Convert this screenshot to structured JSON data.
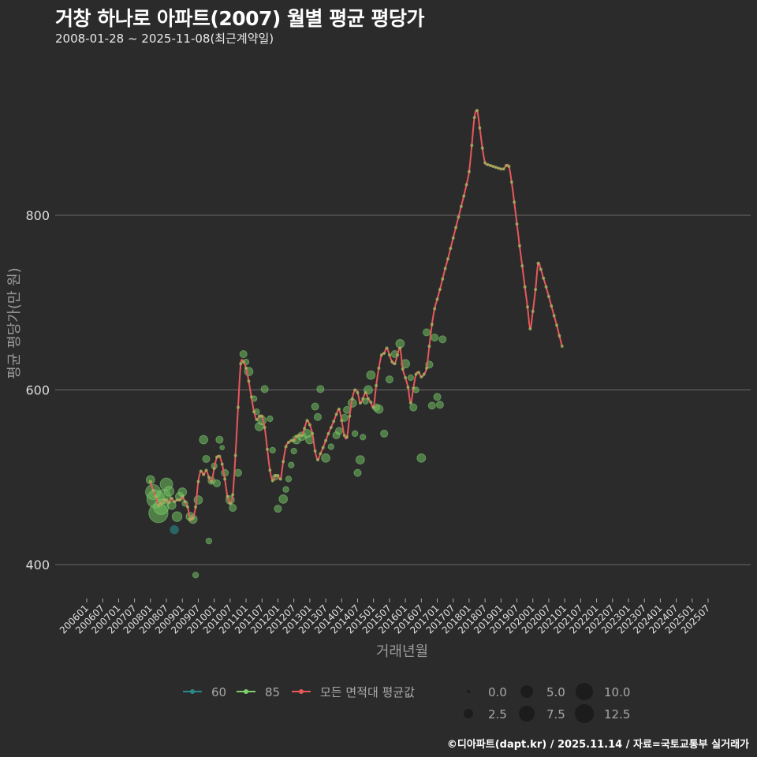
{
  "header": {
    "title": "거창 하나로 아파트(2007) 월별 평균 평당가",
    "subtitle": "2008-01-28 ~ 2025-11-08(최근계약일)"
  },
  "footer": {
    "credit": "©디아파트(dapt.kr) / 2025.11.14 / 자료=국토교통부 실거래가"
  },
  "colors": {
    "background": "#2b2b2c",
    "grid": "#6a6a6a",
    "s60": "#2a8a8a",
    "s85": "#7fd06a",
    "avg": "#e8585a",
    "point_fill": "#6fbf5e"
  },
  "chart_data": {
    "type": "scatter+line",
    "title": "거창 하나로 아파트(2007) 월별 평균 평당가",
    "subtitle": "2008-01-28 ~ 2025-11-08(최근계약일)",
    "xlabel": "거래년월",
    "ylabel": "평균 평당가(만 원)",
    "yticks": [
      400,
      600,
      800
    ],
    "ylim": [
      355,
      965
    ],
    "grid": true,
    "xticks": [
      "200601",
      "200607",
      "200701",
      "200707",
      "200801",
      "200807",
      "200901",
      "200907",
      "201001",
      "201007",
      "201101",
      "201107",
      "201201",
      "201207",
      "201301",
      "201307",
      "201401",
      "201407",
      "201501",
      "201507",
      "201601",
      "201607",
      "201701",
      "201707",
      "201801",
      "201807",
      "201901",
      "201907",
      "202001",
      "202007",
      "202101",
      "202107",
      "202201",
      "202207",
      "202301",
      "202307",
      "202401",
      "202407",
      "202501",
      "202507"
    ],
    "legend": {
      "series": [
        {
          "name": "60",
          "color": "#2a8a8a"
        },
        {
          "name": "85",
          "color": "#7fd06a"
        },
        {
          "name": "모든 면적대 평균값",
          "color": "#e8585a"
        }
      ],
      "size": [
        "0.0",
        "2.5",
        "5.0",
        "7.5",
        "10.0",
        "12.5"
      ]
    },
    "series_60_points": [
      [
        "200810",
        440,
        2
      ]
    ],
    "series_85_points": [
      [
        "200801",
        497,
        4
      ],
      [
        "200802",
        483,
        9
      ],
      [
        "200803",
        475,
        11
      ],
      [
        "200804",
        459,
        12
      ],
      [
        "200805",
        466,
        9
      ],
      [
        "200806",
        478,
        8
      ],
      [
        "200807",
        492,
        7
      ],
      [
        "200808",
        484,
        5
      ],
      [
        "200809",
        468,
        4
      ],
      [
        "200811",
        455,
        5
      ],
      [
        "200812",
        478,
        4
      ],
      [
        "200901",
        483,
        4
      ],
      [
        "200902",
        470,
        2
      ],
      [
        "200904",
        455,
        4
      ],
      [
        "200905",
        452,
        4
      ],
      [
        "200906",
        388,
        2
      ],
      [
        "200907",
        474,
        4
      ],
      [
        "200909",
        543,
        4
      ],
      [
        "200910",
        521,
        3
      ],
      [
        "200911",
        427,
        2
      ],
      [
        "200912",
        496,
        3
      ],
      [
        "201001",
        513,
        2
      ],
      [
        "201002",
        493,
        3
      ],
      [
        "201003",
        543,
        3
      ],
      [
        "201004",
        534,
        1
      ],
      [
        "201005",
        505,
        3
      ],
      [
        "201007",
        474,
        4
      ],
      [
        "201008",
        465,
        3
      ],
      [
        "201010",
        505,
        3
      ],
      [
        "201012",
        641,
        3
      ],
      [
        "201101",
        632,
        2
      ],
      [
        "201102",
        621,
        4
      ],
      [
        "201104",
        590,
        2
      ],
      [
        "201105",
        575,
        2
      ],
      [
        "201106",
        558,
        4
      ],
      [
        "201107",
        565,
        4
      ],
      [
        "201108",
        601,
        3
      ],
      [
        "201110",
        567,
        2
      ],
      [
        "201111",
        531,
        2
      ],
      [
        "201112",
        500,
        2
      ],
      [
        "201201",
        464,
        3
      ],
      [
        "201203",
        475,
        4
      ],
      [
        "201204",
        486,
        2
      ],
      [
        "201205",
        498,
        2
      ],
      [
        "201206",
        514,
        2
      ],
      [
        "201207",
        530,
        2
      ],
      [
        "201208",
        543,
        4
      ],
      [
        "201210",
        547,
        4
      ],
      [
        "201212",
        550,
        4
      ],
      [
        "201301",
        543,
        4
      ],
      [
        "201303",
        581,
        3
      ],
      [
        "201304",
        569,
        3
      ],
      [
        "201305",
        601,
        3
      ],
      [
        "201307",
        522,
        4
      ],
      [
        "201309",
        535,
        2
      ],
      [
        "201311",
        548,
        3
      ],
      [
        "201312",
        553,
        3
      ],
      [
        "201402",
        568,
        3
      ],
      [
        "201403",
        577,
        3
      ],
      [
        "201405",
        585,
        4
      ],
      [
        "201406",
        550,
        2
      ],
      [
        "201407",
        505,
        3
      ],
      [
        "201408",
        520,
        4
      ],
      [
        "201409",
        546,
        2
      ],
      [
        "201410",
        587,
        2
      ],
      [
        "201411",
        600,
        4
      ],
      [
        "201412",
        617,
        4
      ],
      [
        "201502",
        580,
        3
      ],
      [
        "201503",
        578,
        4
      ],
      [
        "201505",
        550,
        3
      ],
      [
        "201507",
        612,
        3
      ],
      [
        "201509",
        641,
        3
      ],
      [
        "201511",
        653,
        4
      ],
      [
        "201601",
        630,
        4
      ],
      [
        "201603",
        614,
        2
      ],
      [
        "201604",
        580,
        3
      ],
      [
        "201605",
        600,
        2
      ],
      [
        "201607",
        522,
        4
      ],
      [
        "201609",
        666,
        3
      ],
      [
        "201610",
        629,
        3
      ],
      [
        "201611",
        582,
        3
      ],
      [
        "201612",
        660,
        3
      ],
      [
        "201701",
        592,
        3
      ],
      [
        "201702",
        583,
        3
      ],
      [
        "201703",
        658,
        3
      ]
    ],
    "avg_line": [
      [
        "200801",
        495
      ],
      [
        "200802",
        485
      ],
      [
        "200803",
        478
      ],
      [
        "200804",
        468
      ],
      [
        "200805",
        470
      ],
      [
        "200806",
        474
      ],
      [
        "200807",
        474
      ],
      [
        "200808",
        471
      ],
      [
        "200809",
        476
      ],
      [
        "200810",
        472
      ],
      [
        "200811",
        474
      ],
      [
        "200812",
        474
      ],
      [
        "200901",
        478
      ],
      [
        "200902",
        472
      ],
      [
        "200903",
        466
      ],
      [
        "200904",
        452
      ],
      [
        "200905",
        453
      ],
      [
        "200906",
        466
      ],
      [
        "200907",
        495
      ],
      [
        "200908",
        507
      ],
      [
        "200909",
        503
      ],
      [
        "200910",
        508
      ],
      [
        "200911",
        500
      ],
      [
        "200912",
        495
      ],
      [
        "201001",
        510
      ],
      [
        "201002",
        523
      ],
      [
        "201003",
        524
      ],
      [
        "201004",
        515
      ],
      [
        "201005",
        498
      ],
      [
        "201006",
        478
      ],
      [
        "201007",
        470
      ],
      [
        "201008",
        480
      ],
      [
        "201009",
        525
      ],
      [
        "201010",
        580
      ],
      [
        "201011",
        630
      ],
      [
        "201012",
        632
      ],
      [
        "201101",
        625
      ],
      [
        "201102",
        610
      ],
      [
        "201103",
        592
      ],
      [
        "201104",
        575
      ],
      [
        "201105",
        566
      ],
      [
        "201106",
        570
      ],
      [
        "201107",
        570
      ],
      [
        "201108",
        557
      ],
      [
        "201109",
        532
      ],
      [
        "201110",
        508
      ],
      [
        "201111",
        496
      ],
      [
        "201112",
        502
      ],
      [
        "201201",
        502
      ],
      [
        "201202",
        498
      ],
      [
        "201203",
        518
      ],
      [
        "201204",
        535
      ],
      [
        "201205",
        540
      ],
      [
        "201206",
        542
      ],
      [
        "201207",
        542
      ],
      [
        "201208",
        547
      ],
      [
        "201209",
        548
      ],
      [
        "201210",
        548
      ],
      [
        "201211",
        556
      ],
      [
        "201212",
        565
      ],
      [
        "201301",
        560
      ],
      [
        "201302",
        550
      ],
      [
        "201303",
        530
      ],
      [
        "201304",
        520
      ],
      [
        "201305",
        527
      ],
      [
        "201306",
        534
      ],
      [
        "201307",
        542
      ],
      [
        "201308",
        550
      ],
      [
        "201309",
        557
      ],
      [
        "201310",
        564
      ],
      [
        "201311",
        572
      ],
      [
        "201312",
        578
      ],
      [
        "201401",
        565
      ],
      [
        "201402",
        548
      ],
      [
        "201403",
        546
      ],
      [
        "201404",
        570
      ],
      [
        "201405",
        590
      ],
      [
        "201406",
        600
      ],
      [
        "201407",
        597
      ],
      [
        "201408",
        585
      ],
      [
        "201409",
        590
      ],
      [
        "201410",
        597
      ],
      [
        "201411",
        590
      ],
      [
        "201412",
        586
      ],
      [
        "201501",
        580
      ],
      [
        "201502",
        605
      ],
      [
        "201503",
        625
      ],
      [
        "201504",
        640
      ],
      [
        "201505",
        642
      ],
      [
        "201506",
        648
      ],
      [
        "201507",
        640
      ],
      [
        "201508",
        632
      ],
      [
        "201509",
        630
      ],
      [
        "201510",
        640
      ],
      [
        "201511",
        648
      ],
      [
        "201512",
        624
      ],
      [
        "201601",
        614
      ],
      [
        "201602",
        603
      ],
      [
        "201603",
        585
      ],
      [
        "201604",
        602
      ],
      [
        "201605",
        618
      ],
      [
        "201606",
        620
      ],
      [
        "201607",
        615
      ],
      [
        "201608",
        618
      ],
      [
        "201609",
        625
      ],
      [
        "201610",
        650
      ],
      [
        "201611",
        675
      ],
      [
        "201612",
        693
      ],
      [
        "201701",
        704
      ],
      [
        "201702",
        715
      ],
      [
        "201703",
        727
      ],
      [
        "201704",
        739
      ],
      [
        "201705",
        750
      ],
      [
        "201706",
        762
      ],
      [
        "201707",
        774
      ],
      [
        "201708",
        786
      ],
      [
        "201709",
        798
      ],
      [
        "201710",
        810
      ],
      [
        "201711",
        822
      ],
      [
        "201712",
        835
      ],
      [
        "201801",
        850
      ],
      [
        "201802",
        880
      ],
      [
        "201803",
        912
      ],
      [
        "201804",
        920
      ],
      [
        "201805",
        900
      ],
      [
        "201806",
        877
      ],
      [
        "201807",
        860
      ],
      [
        "201808",
        858
      ],
      [
        "201809",
        857
      ],
      [
        "201810",
        856
      ],
      [
        "201811",
        855
      ],
      [
        "201812",
        854
      ],
      [
        "201901",
        853
      ],
      [
        "201902",
        853
      ],
      [
        "201903",
        857
      ],
      [
        "201904",
        856
      ],
      [
        "201905",
        838
      ],
      [
        "201906",
        815
      ],
      [
        "201907",
        790
      ],
      [
        "201908",
        765
      ],
      [
        "201909",
        742
      ],
      [
        "201910",
        718
      ],
      [
        "201911",
        695
      ],
      [
        "201912",
        670
      ],
      [
        "202001",
        690
      ],
      [
        "202002",
        715
      ],
      [
        "202003",
        745
      ],
      [
        "202004",
        738
      ],
      [
        "202005",
        728
      ],
      [
        "202006",
        718
      ],
      [
        "202007",
        707
      ],
      [
        "202008",
        696
      ],
      [
        "202009",
        685
      ],
      [
        "202010",
        674
      ],
      [
        "202011",
        662
      ],
      [
        "202012",
        650
      ]
    ]
  },
  "axes": {
    "x_title": "거래년월",
    "y_title": "평균 평당가(만 원)",
    "yticks": [
      "400",
      "600",
      "800"
    ]
  },
  "legend": {
    "items": [
      "60",
      "85",
      "모든 면적대 평균값"
    ],
    "size_labels": [
      "0.0",
      "2.5",
      "5.0",
      "7.5",
      "10.0",
      "12.5"
    ]
  }
}
